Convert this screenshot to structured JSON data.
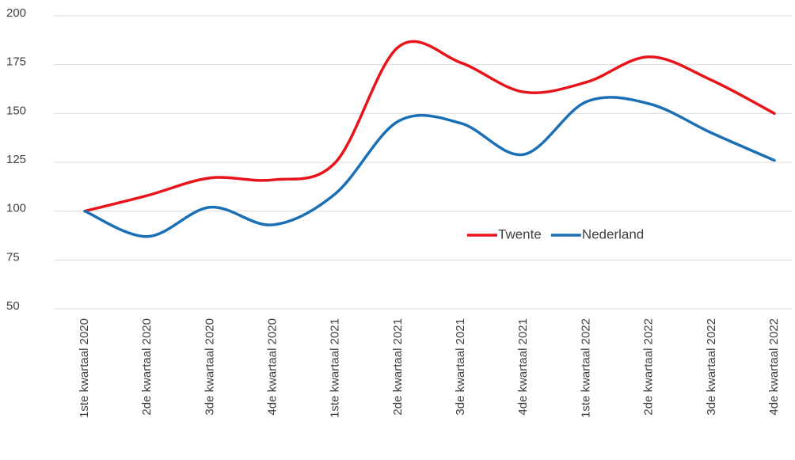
{
  "chart_data": {
    "type": "line",
    "categories": [
      "1ste kwartaal 2020",
      "2de kwartaal 2020",
      "3de kwartaal 2020",
      "4de kwartaal 2020",
      "1ste kwartaal 2021",
      "2de kwartaal 2021",
      "3de kwartaal 2021",
      "4de kwartaal 2021",
      "1ste kwartaal 2022",
      "2de kwartaal 2022",
      "3de kwartaal 2022",
      "4de kwartaal 2022"
    ],
    "series": [
      {
        "name": "Twente",
        "color": "#e8141b",
        "values": [
          100,
          108,
          117,
          116,
          125,
          184,
          176,
          161,
          166,
          179,
          167,
          150
        ]
      },
      {
        "name": "Nederland",
        "color": "#1a6fb5",
        "values": [
          100,
          87,
          102,
          93,
          109,
          146,
          145,
          129,
          156,
          155,
          140,
          126
        ]
      }
    ],
    "ylim": [
      50,
      200
    ],
    "yticks": [
      50,
      75,
      100,
      125,
      150,
      175,
      200
    ],
    "grid": true,
    "smooth": true,
    "legend": "right"
  }
}
